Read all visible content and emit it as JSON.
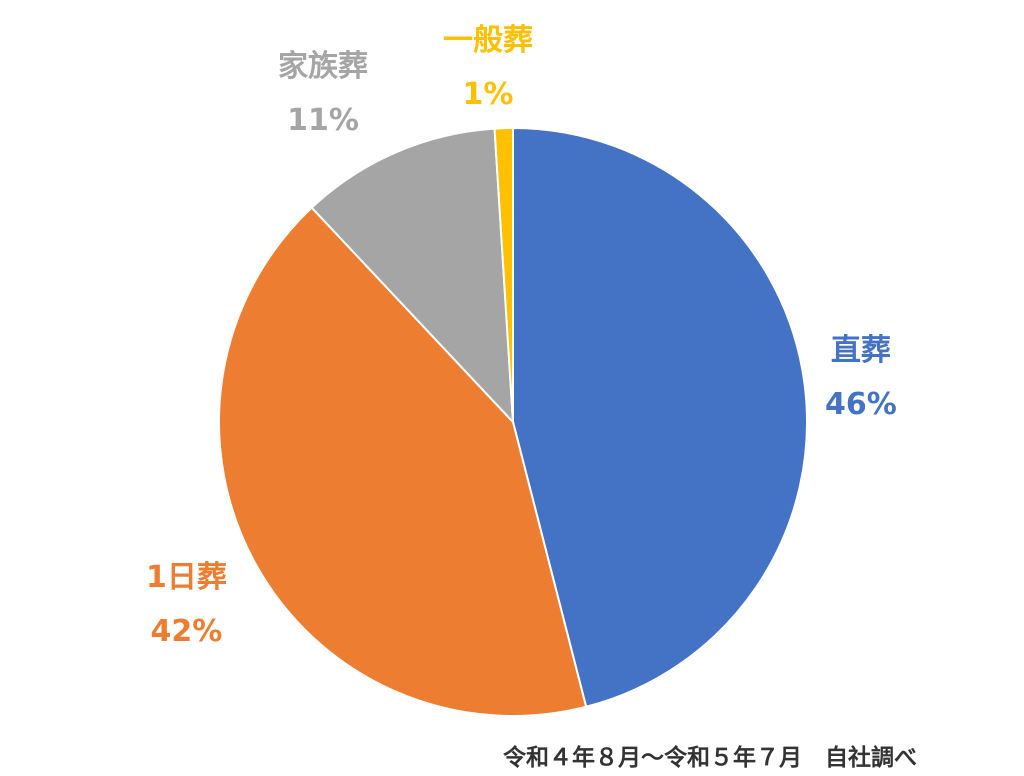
{
  "chart_data": {
    "type": "pie",
    "slices": [
      {
        "name": "直葬",
        "label": "46%",
        "value": 46,
        "color": "#4472C4"
      },
      {
        "name": "1日葬",
        "label": "42%",
        "value": 42,
        "color": "#ED7D31"
      },
      {
        "name": "家族葬",
        "label": "11%",
        "value": 11,
        "color": "#A5A5A5"
      },
      {
        "name": "一般葬",
        "label": "1%",
        "value": 1,
        "color": "#FFC000"
      }
    ],
    "start": "12 o'clock",
    "direction": "clockwise"
  },
  "footnote": "令和４年８月～令和５年７月　自社調べ"
}
